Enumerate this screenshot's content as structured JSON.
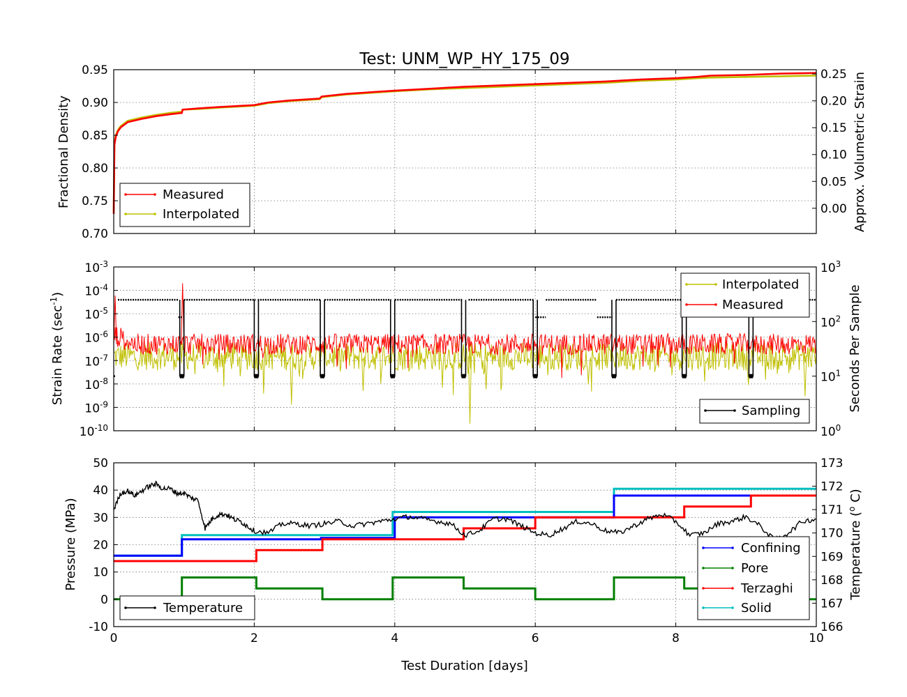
{
  "chart_data": [
    {
      "panel": "density",
      "type": "line",
      "title": "Test: UNM_WP_HY_175_09",
      "xlim": [
        0,
        10
      ],
      "xticks": [
        0,
        2,
        4,
        6,
        8,
        10
      ],
      "ylim": [
        0.7,
        0.95
      ],
      "yticks": [
        "0.70",
        "0.75",
        "0.80",
        "0.85",
        "0.90",
        "0.95"
      ],
      "ylabel": "Fractional Density",
      "y2lim": [
        -0.047,
        0.258
      ],
      "y2ticks": [
        "0.00",
        "0.05",
        "0.10",
        "0.15",
        "0.20",
        "0.25"
      ],
      "y2label": "Approx. Volumetric Strain",
      "grid": true,
      "legend_position": "lower-left",
      "series": [
        {
          "name": "Measured",
          "color": "#ff0000",
          "x": [
            0,
            0.01,
            0.03,
            0.06,
            0.1,
            0.2,
            0.4,
            0.6,
            0.8,
            0.97,
            0.98,
            1.2,
            1.5,
            2.0,
            2.2,
            2.5,
            2.93,
            2.96,
            3.3,
            3.7,
            4.0,
            4.5,
            5.0,
            5.5,
            6.0,
            6.5,
            7.0,
            7.5,
            8.0,
            8.3,
            8.5,
            9.0,
            9.5,
            10.0
          ],
          "y": [
            0.73,
            0.835,
            0.848,
            0.856,
            0.862,
            0.87,
            0.875,
            0.879,
            0.882,
            0.884,
            0.889,
            0.891,
            0.893,
            0.896,
            0.9,
            0.903,
            0.906,
            0.909,
            0.913,
            0.916,
            0.918,
            0.921,
            0.924,
            0.926,
            0.928,
            0.93,
            0.932,
            0.935,
            0.937,
            0.939,
            0.941,
            0.942,
            0.944,
            0.945
          ]
        },
        {
          "name": "Interpolated",
          "color": "#bfbf00",
          "x": [
            0,
            0.01,
            0.03,
            0.06,
            0.1,
            0.2,
            0.4,
            0.6,
            0.8,
            0.97,
            0.98,
            1.2,
            1.5,
            2.0,
            2.2,
            2.5,
            2.93,
            2.96,
            3.3,
            3.7,
            4.0,
            4.5,
            5.0,
            5.5,
            6.0,
            6.5,
            7.0,
            7.5,
            8.0,
            8.3,
            8.5,
            9.0,
            9.5,
            10.0
          ],
          "y": [
            0.735,
            0.838,
            0.85,
            0.858,
            0.864,
            0.872,
            0.877,
            0.881,
            0.884,
            0.886,
            0.889,
            0.89,
            0.892,
            0.895,
            0.899,
            0.902,
            0.905,
            0.908,
            0.912,
            0.915,
            0.917,
            0.92,
            0.922,
            0.924,
            0.926,
            0.928,
            0.93,
            0.933,
            0.935,
            0.937,
            0.938,
            0.939,
            0.94,
            0.941
          ]
        }
      ]
    },
    {
      "panel": "strain-rate",
      "type": "line",
      "xlim": [
        0,
        10
      ],
      "xticks": [
        0,
        2,
        4,
        6,
        8,
        10
      ],
      "yscale": "log",
      "ylim": [
        1e-10,
        0.001
      ],
      "ytick_exponents": [
        "-10",
        "-9",
        "-8",
        "-7",
        "-6",
        "-5",
        "-4",
        "-3"
      ],
      "ylabel": "Strain Rate (sec",
      "ylabel_sup": "-1",
      "ylabel_end": ")",
      "y2scale": "log",
      "y2lim": [
        1,
        1000
      ],
      "y2tick_exponents": [
        "0",
        "1",
        "2",
        "3"
      ],
      "y2label": "Seconds Per Sample",
      "grid": true,
      "legend_upper": "upper-right",
      "legend_lower": "lower-right",
      "stage_boundaries": [
        0.97,
        2.03,
        2.97,
        3.97,
        4.98,
        6.0,
        7.12,
        8.12,
        9.07
      ],
      "series": [
        {
          "name": "Interpolated",
          "color": "#bfbf00",
          "typical": 1.5e-07,
          "spread_decades": 1.2,
          "spikes": [
            {
              "x": 2.53,
              "y": 1.3e-09
            },
            {
              "x": 3.55,
              "y": 5e-09
            },
            {
              "x": 5.07,
              "y": 2e-10
            },
            {
              "x": 5.3,
              "y": 6e-09
            },
            {
              "x": 9.84,
              "y": 3e-09
            }
          ]
        },
        {
          "name": "Measured",
          "color": "#ff0000",
          "typical": 5e-07,
          "spread_decades": 0.9,
          "spikes": [
            {
              "x": 0.98,
              "y": 0.0002
            },
            {
              "x": 0.02,
              "y": 6e-05
            }
          ]
        },
        {
          "name": "Sampling",
          "color": "#000000",
          "axis": "right",
          "steps": [
            {
              "x0": 0.0,
              "x1": 0.02,
              "y": 10
            },
            {
              "x0": 0.06,
              "x1": 0.92,
              "y": 250
            },
            {
              "x0": 0.92,
              "x1": 0.97,
              "y": 120
            },
            {
              "x0": 1.0,
              "x1": 2.02,
              "y": 250
            },
            {
              "x0": 2.05,
              "x1": 2.95,
              "y": 250
            },
            {
              "x0": 3.0,
              "x1": 3.95,
              "y": 250
            },
            {
              "x0": 4.0,
              "x1": 4.96,
              "y": 250
            },
            {
              "x0": 5.05,
              "x1": 5.98,
              "y": 250
            },
            {
              "x0": 6.0,
              "x1": 6.15,
              "y": 120
            },
            {
              "x0": 6.15,
              "x1": 6.88,
              "y": 250
            },
            {
              "x0": 6.88,
              "x1": 7.1,
              "y": 120
            },
            {
              "x0": 7.15,
              "x1": 8.1,
              "y": 250
            },
            {
              "x0": 8.15,
              "x1": 9.05,
              "y": 250
            },
            {
              "x0": 9.1,
              "x1": 10.0,
              "y": 250
            }
          ],
          "dip_value": 10
        }
      ]
    },
    {
      "panel": "pressure",
      "type": "line",
      "xlim": [
        0,
        10
      ],
      "xticks": [
        0,
        2,
        4,
        6,
        8,
        10
      ],
      "xlabel": "Test Duration [days]",
      "ylim": [
        -10,
        50
      ],
      "yticks": [
        "-10",
        "0",
        "10",
        "20",
        "30",
        "40",
        "50"
      ],
      "ylabel": "Pressure (MPa)",
      "y2lim": [
        166,
        173
      ],
      "y2ticks": [
        "166",
        "167",
        "168",
        "169",
        "170",
        "171",
        "172",
        "173"
      ],
      "y2label": "Temperature (",
      "y2label_sup": "o",
      "y2label_end": " C)",
      "grid": true,
      "legend_left": "lower-left",
      "legend_right": "lower-right",
      "series": [
        {
          "name": "Confining",
          "color": "#0000ff",
          "steps": [
            [
              0,
              0.97,
              16
            ],
            [
              0.97,
              2.95,
              22
            ],
            [
              2.95,
              4.0,
              22.5
            ],
            [
              4.0,
              6.0,
              30
            ],
            [
              6.0,
              7.12,
              30
            ],
            [
              7.12,
              9.05,
              38
            ],
            [
              9.05,
              10.0,
              38
            ]
          ]
        },
        {
          "name": "Pore",
          "color": "#008000",
          "steps": [
            [
              0,
              0.97,
              0
            ],
            [
              0.97,
              2.03,
              8
            ],
            [
              2.03,
              2.97,
              4
            ],
            [
              2.97,
              3.97,
              0
            ],
            [
              3.97,
              4.98,
              8
            ],
            [
              4.98,
              6.0,
              4
            ],
            [
              6.0,
              7.12,
              0
            ],
            [
              7.12,
              8.12,
              8
            ],
            [
              8.12,
              9.07,
              4
            ],
            [
              9.07,
              10.0,
              0
            ]
          ]
        },
        {
          "name": "Terzaghi",
          "color": "#ff0000",
          "steps": [
            [
              0,
              0.97,
              14
            ],
            [
              0.97,
              2.03,
              14
            ],
            [
              2.03,
              2.97,
              18
            ],
            [
              2.97,
              3.97,
              22
            ],
            [
              3.97,
              4.98,
              22
            ],
            [
              4.98,
              6.0,
              26
            ],
            [
              6.0,
              7.12,
              30
            ],
            [
              7.12,
              8.12,
              30
            ],
            [
              8.12,
              9.07,
              34
            ],
            [
              9.07,
              10.0,
              38
            ]
          ]
        },
        {
          "name": "Solid",
          "color": "#00bfbf",
          "steps": [
            [
              0,
              0.97,
              16
            ],
            [
              0.97,
              3.97,
              23.5
            ],
            [
              3.97,
              7.12,
              32
            ],
            [
              7.12,
              10.0,
              40.5
            ]
          ]
        },
        {
          "name": "Temperature",
          "color": "#000000",
          "axis": "right",
          "x": [
            0,
            0.1,
            0.2,
            0.3,
            0.4,
            0.5,
            0.6,
            0.7,
            0.8,
            0.9,
            1.0,
            1.1,
            1.2,
            1.3,
            1.4,
            1.5,
            1.6,
            1.7,
            1.8,
            1.9,
            2.0,
            2.2,
            2.4,
            2.6,
            2.8,
            3.0,
            3.2,
            3.4,
            3.6,
            3.8,
            4.0,
            4.2,
            4.4,
            4.6,
            4.8,
            5.0,
            5.2,
            5.4,
            5.6,
            5.8,
            6.0,
            6.2,
            6.4,
            6.6,
            6.8,
            7.0,
            7.2,
            7.4,
            7.6,
            7.8,
            8.0,
            8.2,
            8.4,
            8.6,
            8.8,
            9.0,
            9.2,
            9.4,
            9.6,
            9.8,
            10.0
          ],
          "y": [
            171.0,
            171.7,
            171.8,
            171.6,
            171.8,
            172.0,
            172.1,
            171.9,
            171.9,
            171.7,
            171.7,
            171.5,
            171.4,
            170.2,
            170.6,
            170.8,
            170.8,
            170.6,
            170.5,
            170.3,
            170.1,
            170.0,
            170.4,
            170.4,
            170.3,
            170.4,
            170.5,
            170.3,
            170.4,
            170.5,
            170.6,
            170.7,
            170.6,
            170.5,
            170.4,
            169.9,
            170.1,
            170.6,
            170.6,
            170.3,
            170.0,
            169.9,
            170.2,
            170.5,
            170.4,
            170.1,
            170.0,
            170.3,
            170.6,
            170.8,
            170.5,
            169.9,
            170.0,
            170.4,
            170.5,
            170.7,
            170.3,
            169.7,
            170.0,
            170.5,
            170.6
          ]
        }
      ]
    }
  ]
}
